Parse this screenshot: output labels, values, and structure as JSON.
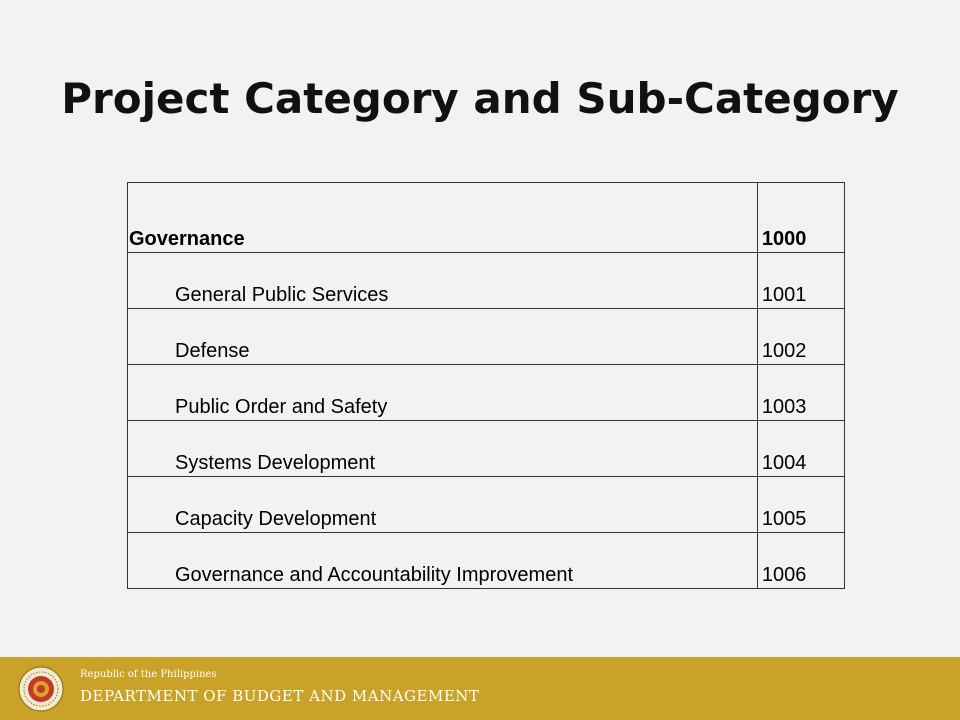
{
  "slide": {
    "title": "Project Category and Sub-Category"
  },
  "table": {
    "header": {
      "name": "Governance",
      "code": "1000"
    },
    "rows": [
      {
        "name": "General Public Services",
        "code": "1001"
      },
      {
        "name": "Defense",
        "code": "1002"
      },
      {
        "name": "Public Order and Safety",
        "code": "1003"
      },
      {
        "name": "Systems Development",
        "code": "1004"
      },
      {
        "name": "Capacity Development",
        "code": "1005"
      },
      {
        "name": "Governance and Accountability Improvement",
        "code": "1006"
      }
    ]
  },
  "footer": {
    "subtitle": "Republic of the Philippines",
    "agency": "DEPARTMENT OF BUDGET AND MANAGEMENT",
    "seal_icon": "dbm-seal-icon",
    "background_color": "#c9a227"
  }
}
